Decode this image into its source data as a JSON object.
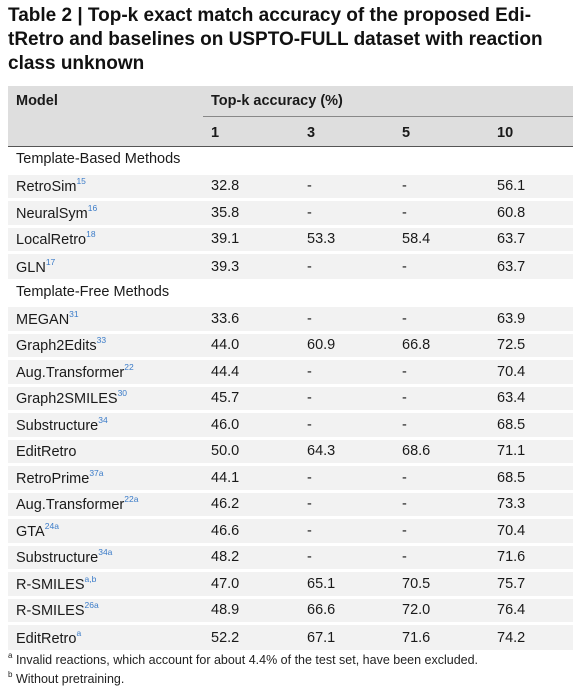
{
  "caption": {
    "line1": "Table 2 | Top-k exact match accuracy of the proposed Edi-",
    "line2": "tRetro and baselines on USPTO-FULL dataset with reaction",
    "line3": "class unknown"
  },
  "header": {
    "model": "Model",
    "topk": "Top-k accuracy (%)",
    "k": [
      "1",
      "3",
      "5",
      "10"
    ]
  },
  "sections": [
    {
      "title": "Template-Based Methods",
      "rows": [
        {
          "name": "RetroSim",
          "ref": "15",
          "v": [
            "32.8",
            "-",
            "-",
            "56.1"
          ]
        },
        {
          "name": "NeuralSym",
          "ref": "16",
          "v": [
            "35.8",
            "-",
            "-",
            "60.8"
          ]
        },
        {
          "name": "LocalRetro",
          "ref": "18",
          "v": [
            "39.1",
            "53.3",
            "58.4",
            "63.7"
          ]
        },
        {
          "name": "GLN",
          "ref": "17",
          "v": [
            "39.3",
            "-",
            "-",
            "63.7"
          ]
        }
      ]
    },
    {
      "title": "Template-Free Methods",
      "rows": [
        {
          "name": "MEGAN",
          "ref": "31",
          "v": [
            "33.6",
            "-",
            "-",
            "63.9"
          ]
        },
        {
          "name": "Graph2Edits",
          "ref": "33",
          "v": [
            "44.0",
            "60.9",
            "66.8",
            "72.5"
          ]
        },
        {
          "name": "Aug.Transformer",
          "ref": "22",
          "v": [
            "44.4",
            "-",
            "-",
            "70.4"
          ]
        },
        {
          "name": "Graph2SMILES",
          "ref": "30",
          "v": [
            "45.7",
            "-",
            "-",
            "63.4"
          ]
        },
        {
          "name": "Substructure",
          "ref": "34",
          "v": [
            "46.0",
            "-",
            "-",
            "68.5"
          ]
        },
        {
          "name": "EditRetro",
          "ref": "",
          "v": [
            "50.0",
            "64.3",
            "68.6",
            "71.1"
          ]
        },
        {
          "name": "RetroPrime",
          "ref": "37a",
          "v": [
            "44.1",
            "-",
            "-",
            "68.5"
          ]
        },
        {
          "name": "Aug.Transformer",
          "ref": "22a",
          "v": [
            "46.2",
            "-",
            "-",
            "73.3"
          ]
        },
        {
          "name": "GTA",
          "ref": "24a",
          "v": [
            "46.6",
            "-",
            "-",
            "70.4"
          ]
        },
        {
          "name": "Substructure",
          "ref": "34a",
          "v": [
            "48.2",
            "-",
            "-",
            "71.6"
          ]
        },
        {
          "name": "R-SMILES",
          "ref": "a,b",
          "v": [
            "47.0",
            "65.1",
            "70.5",
            "75.7"
          ]
        },
        {
          "name": "R-SMILES",
          "ref": "26a",
          "v": [
            "48.9",
            "66.6",
            "72.0",
            "76.4"
          ]
        },
        {
          "name": "EditRetro",
          "ref": "a",
          "v": [
            "52.2",
            "67.1",
            "71.6",
            "74.2"
          ]
        }
      ]
    }
  ],
  "footnotes": [
    {
      "mark": "a",
      "text": "Invalid reactions, which account for about 4.4% of the test set, have been excluded."
    },
    {
      "mark": "b",
      "text": "Without pretraining."
    }
  ]
}
